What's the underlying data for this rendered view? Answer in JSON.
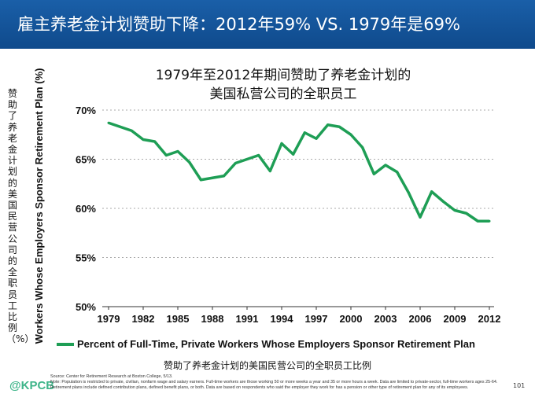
{
  "header": {
    "title": "雇主养老金计划赞助下降：2012年59% VS. 1979年是69%"
  },
  "chart_data": {
    "type": "line",
    "title_lines": [
      "1979年至2012年期间赞助了养老金计划的",
      "美国私营公司的全职员工"
    ],
    "ylabel_cn": "赞助了养老金计划的美国民营公司的全职员工比例（%）",
    "ylabel": "Workers Whose Employers Sponsor Retirement Plan (%)",
    "xlabel": "赞助了养老金计划的美国民营公司的全职员工比例",
    "ylim": [
      50,
      70
    ],
    "xlim": [
      1979,
      2012
    ],
    "yticks": [
      "50%",
      "55%",
      "60%",
      "65%",
      "70%"
    ],
    "xticks": [
      "1979",
      "1982",
      "1985",
      "1988",
      "1991",
      "1994",
      "1997",
      "2000",
      "2003",
      "2006",
      "2009",
      "2012"
    ],
    "grid": "horizontal dotted",
    "legend_position": "bottom",
    "series": [
      {
        "name": "Percent of Full-Time, Private Workers Whose Employers Sponsor Retirement Plan",
        "color": "#1e9e55",
        "x": [
          1979,
          1980,
          1981,
          1982,
          1983,
          1984,
          1985,
          1986,
          1987,
          1988,
          1989,
          1990,
          1991,
          1992,
          1993,
          1994,
          1995,
          1996,
          1997,
          1998,
          1999,
          2000,
          2001,
          2002,
          2003,
          2004,
          2005,
          2006,
          2007,
          2008,
          2009,
          2010,
          2011,
          2012
        ],
        "values": [
          68.7,
          68.3,
          67.9,
          67.0,
          66.8,
          65.4,
          65.8,
          64.7,
          62.9,
          63.1,
          63.3,
          64.6,
          65.0,
          65.4,
          63.8,
          66.6,
          65.5,
          67.7,
          67.1,
          68.5,
          68.3,
          67.5,
          66.2,
          63.5,
          64.4,
          63.7,
          61.6,
          59.1,
          61.7,
          60.7,
          59.8,
          59.5,
          58.7,
          58.7
        ]
      }
    ]
  },
  "footer": {
    "logo": "@KPCB",
    "source": "Source: Center for Retirement Research at Boston College, 5/13.",
    "note": "Note: Population is restricted to private, civilian, nonfarm wage and salary earners. Full-time workers are those working 50 or more weeks a year and 35 or more hours a week. Data are limited to private-sector, full-time workers ages 25-64. Retirement plans include defined contribution plans, defined benefit plans, or both. Data are based on respondents who said the employer they work for has a pension or other type of retirement plan for any of its employees.",
    "page": "101"
  }
}
